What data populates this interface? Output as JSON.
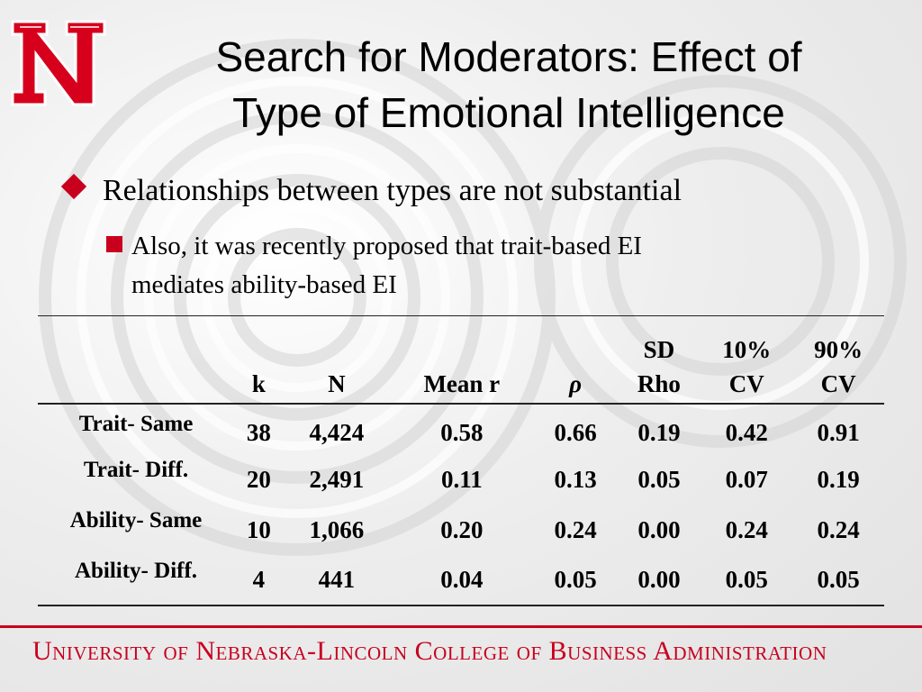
{
  "slide": {
    "title_line1": "Search for Moderators: Effect of",
    "title_line2": "Type of Emotional Intelligence",
    "bullet_main": "Relationships between types are not substantial",
    "bullet_sub_line1": "Also, it was recently proposed that trait-based EI",
    "bullet_sub_line2": "mediates ability-based EI",
    "footer": "University of Nebraska-Lincoln College of Business Administration",
    "logo_icon": "nebraska-n-logo",
    "accent_color": "#c8001e"
  },
  "table": {
    "headers": [
      {
        "line1": "",
        "line2": ""
      },
      {
        "line1": "",
        "line2": "k"
      },
      {
        "line1": "",
        "line2": "N"
      },
      {
        "line1": "",
        "line2": "Mean r"
      },
      {
        "line1": "",
        "line2": "ρ"
      },
      {
        "line1": "SD",
        "line2": "Rho"
      },
      {
        "line1": "10%",
        "line2": "CV"
      },
      {
        "line1": "90%",
        "line2": "CV"
      }
    ],
    "rows": [
      [
        "Trait- Same",
        "38",
        "4,424",
        "0.58",
        "0.66",
        "0.19",
        "0.42",
        "0.91"
      ],
      [
        "Trait- Diff.",
        "20",
        "2,491",
        "0.11",
        "0.13",
        "0.05",
        "0.07",
        "0.19"
      ],
      [
        "Ability- Same",
        "10",
        "1,066",
        "0.20",
        "0.24",
        "0.00",
        "0.24",
        "0.24"
      ],
      [
        "Ability- Diff.",
        "4",
        "441",
        "0.04",
        "0.05",
        "0.00",
        "0.05",
        "0.05"
      ]
    ]
  }
}
